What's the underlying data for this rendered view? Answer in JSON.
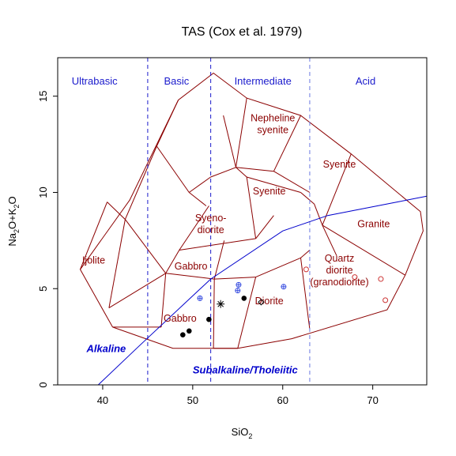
{
  "chart_data": {
    "type": "scatter",
    "title": "TAS (Cox et al. 1979)",
    "xlabel": "SiO",
    "xlabel_sub": "2",
    "ylabel": {
      "a": "Na",
      "a_sub": "2",
      "b": "O+K",
      "b_sub": "2",
      "c": "O"
    },
    "xlim": [
      35,
      76
    ],
    "ylim": [
      0,
      17
    ],
    "xticks": [
      40,
      50,
      60,
      70
    ],
    "yticks": [
      0,
      5,
      10,
      15
    ],
    "grid": false,
    "vlines": [
      {
        "x": 45,
        "color": "#1a1acc",
        "style": "dashed"
      },
      {
        "x": 52,
        "color": "#1a1acc",
        "style": "dashed"
      },
      {
        "x": 63,
        "color": "#6a7ae0",
        "style": "dashed"
      }
    ],
    "categories": [
      {
        "name": "Ultrabasic",
        "x": 39.1,
        "y": 15.8
      },
      {
        "name": "Basic",
        "x": 48.2,
        "y": 15.8
      },
      {
        "name": "Intermediate",
        "x": 57.8,
        "y": 15.8
      },
      {
        "name": "Acid",
        "x": 69.2,
        "y": 15.8
      }
    ],
    "field_color": "#8b0000",
    "divider_color": "#0000cc",
    "fields": [
      [
        [
          41.1,
          3
        ],
        [
          37.5,
          6.0
        ],
        [
          43.0,
          9.6
        ],
        [
          48.4,
          14.8
        ],
        [
          52.3,
          16.2
        ],
        [
          56.0,
          14.9
        ],
        [
          62.0,
          14.0
        ],
        [
          67.6,
          12.0
        ],
        [
          75.3,
          9.0
        ],
        [
          75.6,
          8.0
        ],
        [
          73.6,
          5.7
        ],
        [
          71.6,
          3.9
        ],
        [
          61.0,
          2.4
        ],
        [
          55.0,
          1.9
        ],
        [
          47.8,
          1.9
        ],
        [
          41.1,
          3
        ]
      ],
      [
        [
          37.5,
          6.0
        ],
        [
          40.5,
          9.5
        ]
      ],
      [
        [
          40.5,
          9.5
        ],
        [
          42.5,
          8.6
        ]
      ],
      [
        [
          42.5,
          8.6
        ],
        [
          40.7,
          4.0
        ]
      ],
      [
        [
          42.5,
          8.6
        ],
        [
          46.0,
          12.4
        ]
      ],
      [
        [
          46.0,
          12.4
        ],
        [
          48.4,
          14.8
        ]
      ],
      [
        [
          46.0,
          12.4
        ],
        [
          49.6,
          10.0
        ]
      ],
      [
        [
          49.6,
          10.0
        ],
        [
          51.5,
          9.3
        ]
      ],
      [
        [
          49.6,
          10.0
        ],
        [
          52.0,
          10.8
        ]
      ],
      [
        [
          52.0,
          10.8
        ],
        [
          54.8,
          11.3
        ]
      ],
      [
        [
          54.8,
          11.3
        ],
        [
          53.4,
          14.0
        ]
      ],
      [
        [
          54.8,
          11.3
        ],
        [
          56.0,
          14.9
        ]
      ],
      [
        [
          54.8,
          11.3
        ],
        [
          59.0,
          11.1
        ]
      ],
      [
        [
          59.0,
          11.1
        ],
        [
          62.0,
          14.0
        ]
      ],
      [
        [
          59.0,
          11.1
        ],
        [
          63.0,
          10.0
        ]
      ],
      [
        [
          54.8,
          11.3
        ],
        [
          56.0,
          10.8
        ]
      ],
      [
        [
          56.0,
          10.8
        ],
        [
          62.0,
          10.0
        ]
      ],
      [
        [
          62.0,
          10.0
        ],
        [
          63.5,
          9.4
        ]
      ],
      [
        [
          63.5,
          9.4
        ],
        [
          64.4,
          8.3
        ]
      ],
      [
        [
          64.4,
          8.3
        ],
        [
          67.6,
          12.0
        ]
      ],
      [
        [
          64.4,
          8.3
        ],
        [
          73.6,
          5.7
        ]
      ],
      [
        [
          64.4,
          8.3
        ],
        [
          66.0,
          6.7
        ]
      ],
      [
        [
          42.5,
          8.6
        ],
        [
          47.0,
          5.8
        ]
      ],
      [
        [
          47.0,
          5.8
        ],
        [
          52.4,
          5.5
        ]
      ],
      [
        [
          47.0,
          5.8
        ],
        [
          48.5,
          7.0
        ]
      ],
      [
        [
          48.5,
          7.0
        ],
        [
          51.8,
          9.3
        ]
      ],
      [
        [
          48.5,
          7.0
        ],
        [
          57.0,
          7.6
        ]
      ],
      [
        [
          57.0,
          7.6
        ],
        [
          59.0,
          8.8
        ]
      ],
      [
        [
          57.0,
          7.6
        ],
        [
          56.0,
          10.8
        ]
      ],
      [
        [
          52.4,
          5.5
        ],
        [
          53.5,
          7.5
        ]
      ],
      [
        [
          52.4,
          5.5
        ],
        [
          57.0,
          5.6
        ]
      ],
      [
        [
          52.4,
          5.5
        ],
        [
          52.3,
          1.9
        ]
      ],
      [
        [
          52.3,
          1.9
        ],
        [
          55.0,
          1.9
        ]
      ],
      [
        [
          57.0,
          5.6
        ],
        [
          62.0,
          6.6
        ]
      ],
      [
        [
          62.0,
          6.6
        ],
        [
          63.0,
          7.0
        ]
      ],
      [
        [
          62.0,
          6.6
        ],
        [
          63.0,
          2.9
        ]
      ],
      [
        [
          57.0,
          5.6
        ],
        [
          55.0,
          1.9
        ]
      ],
      [
        [
          47.0,
          5.8
        ],
        [
          46.5,
          3.0
        ]
      ],
      [
        [
          46.5,
          3.0
        ],
        [
          41.1,
          3
        ]
      ],
      [
        [
          40.7,
          4.0
        ],
        [
          47.0,
          5.8
        ]
      ]
    ],
    "field_labels": [
      {
        "lines": [
          "Nepheline",
          "syenite"
        ],
        "x": 58.9,
        "y": 13.6
      },
      {
        "lines": [
          "Syenite"
        ],
        "x": 66.3,
        "y": 11.5
      },
      {
        "lines": [
          "Syenite"
        ],
        "x": 58.5,
        "y": 10.1
      },
      {
        "lines": [
          "Syeno-",
          "diorite"
        ],
        "x": 52.0,
        "y": 8.4
      },
      {
        "lines": [
          "Ijolite"
        ],
        "x": 39.0,
        "y": 6.5
      },
      {
        "lines": [
          "Gabbro"
        ],
        "x": 49.8,
        "y": 6.2
      },
      {
        "lines": [
          "Granite"
        ],
        "x": 70.1,
        "y": 8.4
      },
      {
        "lines": [
          "Quartz",
          "diorite",
          "(granodiorite)"
        ],
        "x": 66.3,
        "y": 6.0
      },
      {
        "lines": [
          "Diorite"
        ],
        "x": 58.5,
        "y": 4.4
      },
      {
        "lines": [
          "Gabbro"
        ],
        "x": 48.6,
        "y": 3.5
      }
    ],
    "divider": {
      "x": [
        39.5,
        44.0,
        52.0,
        60.0,
        65.0,
        76.0
      ],
      "y": [
        0.0,
        2.0,
        5.5,
        8.0,
        8.8,
        9.8
      ]
    },
    "divider_labels": [
      {
        "name": "Alkaline",
        "x": 38.2,
        "y": 1.9
      },
      {
        "name": "Subalkaline/Tholeiitic",
        "x": 50.0,
        "y": 0.8
      }
    ],
    "series": [
      {
        "marker": "filled-circle",
        "color": "#000000",
        "points": [
          [
            48.9,
            2.6
          ],
          [
            49.6,
            2.8
          ],
          [
            51.8,
            3.4
          ],
          [
            55.7,
            4.5
          ]
        ]
      },
      {
        "marker": "star",
        "color": "#000000",
        "points": [
          [
            53.1,
            4.2
          ]
        ]
      },
      {
        "marker": "open-diamond",
        "color": "#000000",
        "points": [
          [
            57.6,
            4.3
          ]
        ]
      },
      {
        "marker": "circle-plus",
        "color": "#3a4fe0",
        "points": [
          [
            50.8,
            4.5
          ],
          [
            55.0,
            4.9
          ],
          [
            55.1,
            5.2
          ],
          [
            60.1,
            5.1
          ]
        ]
      },
      {
        "marker": "open-circle",
        "color": "#cc3333",
        "points": [
          [
            62.6,
            6.0
          ],
          [
            68.0,
            5.6
          ],
          [
            70.9,
            5.5
          ],
          [
            71.4,
            4.4
          ]
        ]
      }
    ]
  }
}
